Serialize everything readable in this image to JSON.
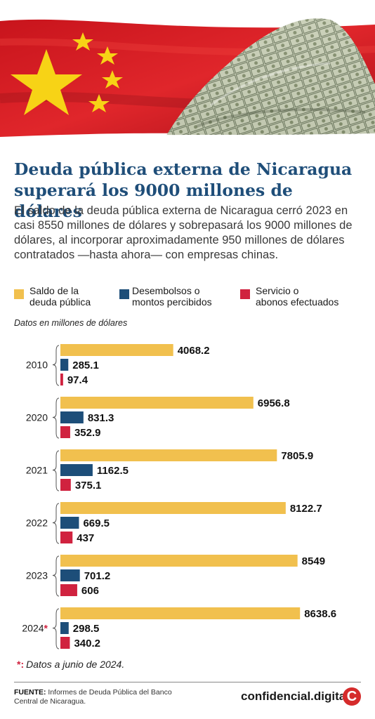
{
  "title": "Deuda pública externa de Nicaragua superará los 9000 millones de dólares",
  "subtitle": "El saldo de la deuda pública externa de Nicaragua cerró 2023 en casi 8550 millones de dólares y sobrepasará los 9000 millones de dólares, al incorporar aproximadamente 950 millones de dólares contratados —hasta ahora— con empresas chinas.",
  "legend": {
    "saldo": [
      "Saldo de la",
      "deuda pública"
    ],
    "desembolsos": [
      "Desembolsos o",
      "montos percibidos"
    ],
    "servicio": [
      "Servicio o",
      "abonos efectuados"
    ]
  },
  "units_note": "Datos en millones de dólares",
  "colors": {
    "saldo": "#f1c04e",
    "desembolsos": "#1d4e79",
    "servicio": "#d0223f",
    "title": "#1f4e79"
  },
  "chart_data": {
    "type": "bar",
    "orientation": "horizontal",
    "categories": [
      "2010",
      "2020",
      "2021",
      "2022",
      "2023",
      "2024"
    ],
    "category_labels": [
      "2010",
      "2020",
      "2021",
      "2022",
      "2023",
      "2024*"
    ],
    "series": [
      {
        "name": "Saldo de la deuda pública",
        "values": [
          4068.2,
          6956.8,
          7805.9,
          8122.7,
          8549,
          8638.6
        ],
        "labels": [
          "4068.2",
          "6956.8",
          "7805.9",
          "8122.7",
          "8549",
          "8638.6"
        ]
      },
      {
        "name": "Desembolsos o montos percibidos",
        "values": [
          285.1,
          831.3,
          1162.5,
          669.5,
          701.2,
          298.5
        ],
        "labels": [
          "285.1",
          "831.3",
          "1162.5",
          "669.5",
          "701.2",
          "298.5"
        ]
      },
      {
        "name": "Servicio o abonos efectuados",
        "values": [
          97.4,
          352.9,
          375.1,
          437,
          606,
          340.2
        ],
        "labels": [
          "97.4",
          "352.9",
          "375.1",
          "437",
          "606",
          "340.2"
        ]
      }
    ],
    "title": "",
    "xlabel": "",
    "ylabel": "",
    "grid": false
  },
  "footnote": {
    "marker": "*:",
    "text": "Datos a junio de 2024."
  },
  "source": {
    "label": "FUENTE:",
    "text": "Informes de Deuda Pública del Banco Central de Nicaragua."
  },
  "brand": "confidencial.digital",
  "brand_logo": "C"
}
